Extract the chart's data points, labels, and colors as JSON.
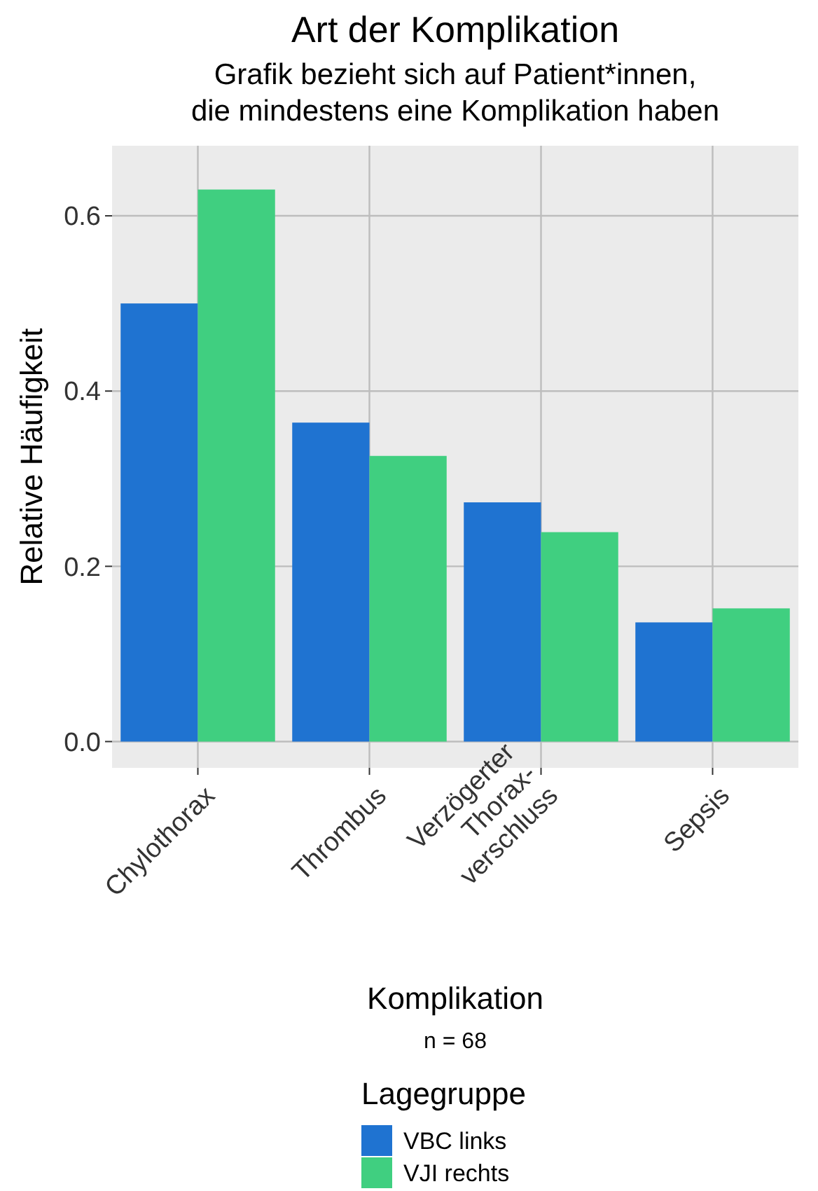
{
  "chart_data": {
    "type": "bar",
    "title": "Art der Komplikation",
    "subtitle": "Grafik bezieht sich auf Patient*innen,\ndie mindestens eine Komplikation haben",
    "xlabel": "Komplikation",
    "ylabel": "Relative Häufigkeit",
    "annotations": [
      "n = 68"
    ],
    "legend_title": "Lagegruppe",
    "legend": "bottom",
    "grid": true,
    "categories": [
      "Chylothorax",
      "Thrombus",
      "Verzögerter\nThorax-\nverschluss",
      "Sepsis"
    ],
    "series": [
      {
        "name": "VBC links",
        "color": "#1f73d1",
        "values": [
          0.5,
          0.364,
          0.273,
          0.136
        ]
      },
      {
        "name": "VJI rechts",
        "color": "#40cf80",
        "values": [
          0.63,
          0.326,
          0.239,
          0.152
        ]
      }
    ],
    "ylim": [
      -0.03,
      0.68
    ],
    "yticks": [
      {
        "value": 0,
        "label": "0.0"
      },
      {
        "value": 0.2,
        "label": "0.2"
      },
      {
        "value": 0.4,
        "label": "0.4"
      },
      {
        "value": 0.6,
        "label": "0.6"
      }
    ]
  }
}
